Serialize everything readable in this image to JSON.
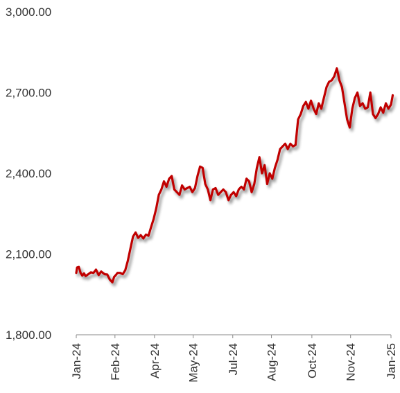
{
  "chart_data": {
    "type": "line",
    "title": "",
    "xlabel": "",
    "ylabel": "",
    "ylim": [
      1800,
      3000
    ],
    "yticks": [
      "1,800.00",
      "2,100.00",
      "2,400.00",
      "2,700.00",
      "3,000.00"
    ],
    "ytick_values": [
      1800,
      2100,
      2400,
      2700,
      3000
    ],
    "xticks": [
      "Jan-24",
      "Feb-24",
      "Apr-24",
      "May-24",
      "Jul-24",
      "Aug-24",
      "Oct-24",
      "Nov-24",
      "Jan-25"
    ],
    "xtick_dates": [
      "2024-01-01",
      "2024-02-15",
      "2024-04-01",
      "2024-05-16",
      "2024-07-01",
      "2024-08-15",
      "2024-10-01",
      "2024-11-15",
      "2025-01-01"
    ],
    "grid": false,
    "legend": "none",
    "series": [
      {
        "color": "#c00000",
        "x": [
          "2024-01-01",
          "2024-01-02",
          "2024-01-04",
          "2024-01-06",
          "2024-01-08",
          "2024-01-10",
          "2024-01-12",
          "2024-01-15",
          "2024-01-18",
          "2024-01-21",
          "2024-01-24",
          "2024-01-27",
          "2024-01-30",
          "2024-02-01",
          "2024-02-03",
          "2024-02-06",
          "2024-02-09",
          "2024-02-12",
          "2024-02-14",
          "2024-02-16",
          "2024-02-18",
          "2024-02-21",
          "2024-02-24",
          "2024-02-27",
          "2024-03-01",
          "2024-03-04",
          "2024-03-07",
          "2024-03-10",
          "2024-03-13",
          "2024-03-16",
          "2024-03-19",
          "2024-03-22",
          "2024-03-25",
          "2024-03-28",
          "2024-03-31",
          "2024-04-03",
          "2024-04-06",
          "2024-04-09",
          "2024-04-12",
          "2024-04-15",
          "2024-04-18",
          "2024-04-21",
          "2024-04-24",
          "2024-04-27",
          "2024-04-30",
          "2024-05-03",
          "2024-05-06",
          "2024-05-09",
          "2024-05-12",
          "2024-05-15",
          "2024-05-18",
          "2024-05-21",
          "2024-05-24",
          "2024-05-27",
          "2024-05-30",
          "2024-06-02",
          "2024-06-05",
          "2024-06-08",
          "2024-06-11",
          "2024-06-14",
          "2024-06-17",
          "2024-06-20",
          "2024-06-23",
          "2024-06-26",
          "2024-06-29",
          "2024-07-02",
          "2024-07-05",
          "2024-07-08",
          "2024-07-11",
          "2024-07-14",
          "2024-07-17",
          "2024-07-20",
          "2024-07-23",
          "2024-07-26",
          "2024-07-29",
          "2024-08-01",
          "2024-08-04",
          "2024-08-07",
          "2024-08-10",
          "2024-08-13",
          "2024-08-16",
          "2024-08-19",
          "2024-08-22",
          "2024-08-25",
          "2024-08-28",
          "2024-08-31",
          "2024-09-03",
          "2024-09-06",
          "2024-09-09",
          "2024-09-12",
          "2024-09-15",
          "2024-09-18",
          "2024-09-21",
          "2024-09-24",
          "2024-09-27",
          "2024-09-30",
          "2024-10-03",
          "2024-10-06",
          "2024-10-09",
          "2024-10-12",
          "2024-10-15",
          "2024-10-18",
          "2024-10-21",
          "2024-10-24",
          "2024-10-27",
          "2024-10-30",
          "2024-11-02",
          "2024-11-05",
          "2024-11-08",
          "2024-11-11",
          "2024-11-14",
          "2024-11-17",
          "2024-11-20",
          "2024-11-23",
          "2024-11-26",
          "2024-11-29",
          "2024-12-02",
          "2024-12-05",
          "2024-12-08",
          "2024-12-11",
          "2024-12-14",
          "2024-12-17",
          "2024-12-20",
          "2024-12-23",
          "2024-12-26",
          "2024-12-29",
          "2025-01-01",
          "2025-01-03"
        ],
        "y": [
          2030,
          2050,
          2052,
          2030,
          2020,
          2028,
          2018,
          2025,
          2032,
          2030,
          2042,
          2022,
          2035,
          2030,
          2025,
          2024,
          2005,
          1995,
          2015,
          2022,
          2030,
          2030,
          2025,
          2040,
          2075,
          2120,
          2165,
          2180,
          2160,
          2170,
          2158,
          2172,
          2168,
          2200,
          2230,
          2270,
          2320,
          2340,
          2370,
          2350,
          2380,
          2390,
          2340,
          2330,
          2320,
          2355,
          2340,
          2345,
          2350,
          2330,
          2345,
          2390,
          2425,
          2420,
          2360,
          2340,
          2300,
          2340,
          2345,
          2320,
          2330,
          2340,
          2330,
          2300,
          2320,
          2330,
          2315,
          2340,
          2350,
          2340,
          2380,
          2370,
          2330,
          2360,
          2420,
          2460,
          2400,
          2430,
          2360,
          2400,
          2380,
          2420,
          2450,
          2490,
          2500,
          2510,
          2490,
          2510,
          2500,
          2505,
          2600,
          2620,
          2650,
          2665,
          2640,
          2670,
          2640,
          2620,
          2660,
          2640,
          2680,
          2720,
          2740,
          2745,
          2760,
          2790,
          2745,
          2720,
          2660,
          2600,
          2570,
          2640,
          2680,
          2700,
          2650,
          2660,
          2640,
          2645,
          2700,
          2620,
          2605,
          2620,
          2645,
          2625,
          2660,
          2640,
          2655,
          2690
        ]
      }
    ]
  }
}
